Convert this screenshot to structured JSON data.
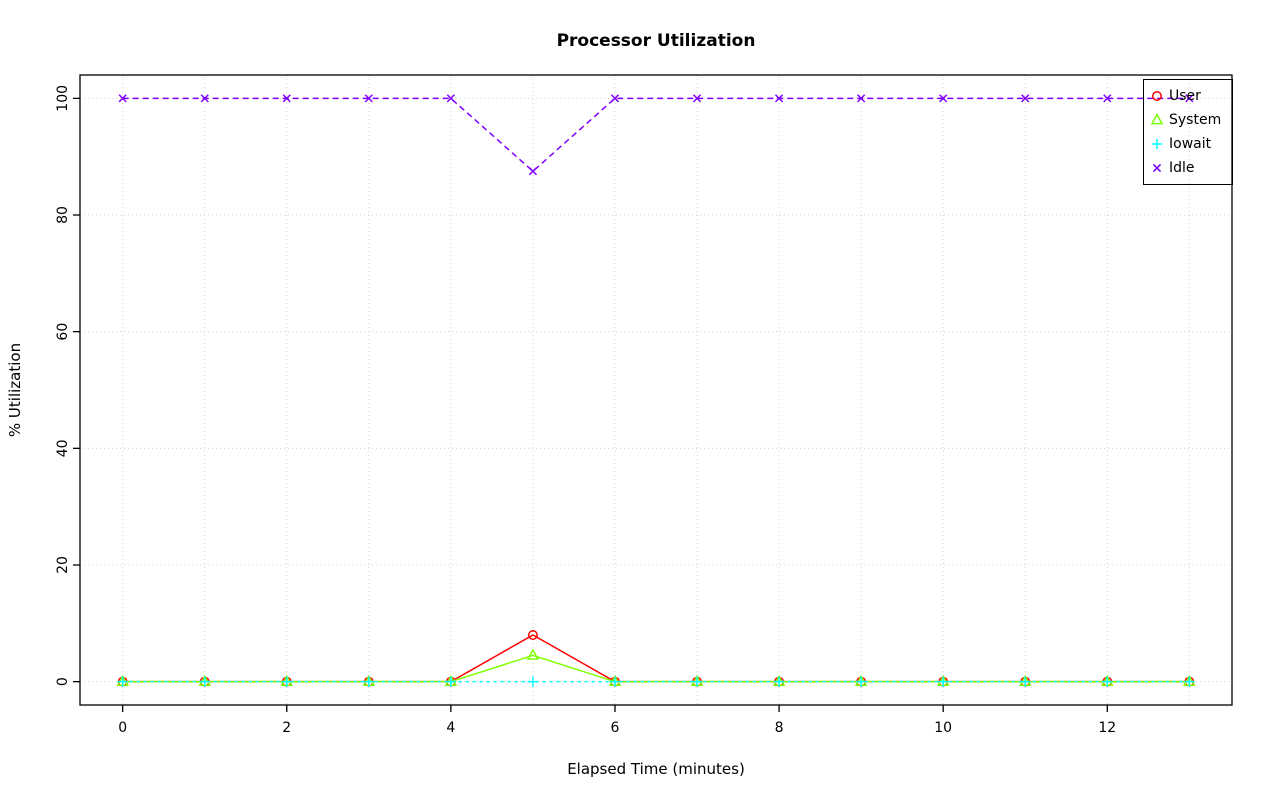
{
  "chart_data": {
    "type": "line",
    "title": "Processor Utilization",
    "xlabel": "Elapsed Time (minutes)",
    "ylabel": "% Utilization",
    "x": [
      0,
      1,
      2,
      3,
      4,
      5,
      6,
      7,
      8,
      9,
      10,
      11,
      12,
      13
    ],
    "xlim": [
      0,
      13
    ],
    "ylim": [
      0,
      100
    ],
    "xticks": [
      0,
      2,
      4,
      6,
      8,
      10,
      12
    ],
    "yticks": [
      0,
      20,
      40,
      60,
      80,
      100
    ],
    "grid_x": [
      0,
      1,
      2,
      3,
      4,
      5,
      6,
      7,
      8,
      9,
      10,
      11,
      12,
      13
    ],
    "grid": true,
    "grid_color": "#d3d3d3",
    "legend_position": "top-right",
    "series": [
      {
        "name": "User",
        "color": "#ff0000",
        "marker": "circle",
        "dash": "",
        "values": [
          0,
          0,
          0,
          0,
          0,
          8,
          0,
          0,
          0,
          0,
          0,
          0,
          0,
          0
        ]
      },
      {
        "name": "System",
        "color": "#80ff00",
        "marker": "triangle",
        "dash": "",
        "values": [
          0,
          0,
          0,
          0,
          0,
          4.5,
          0,
          0,
          0,
          0,
          0,
          0,
          0,
          0
        ]
      },
      {
        "name": "Iowait",
        "color": "#00ffff",
        "marker": "plus",
        "dash": "3,4",
        "values": [
          0,
          0,
          0,
          0,
          0,
          0,
          0,
          0,
          0,
          0,
          0,
          0,
          0,
          0
        ]
      },
      {
        "name": "Idle",
        "color": "#8000ff",
        "marker": "x",
        "dash": "6,4",
        "values": [
          100,
          100,
          100,
          100,
          100,
          87.5,
          100,
          100,
          100,
          100,
          100,
          100,
          100,
          100
        ]
      }
    ]
  }
}
